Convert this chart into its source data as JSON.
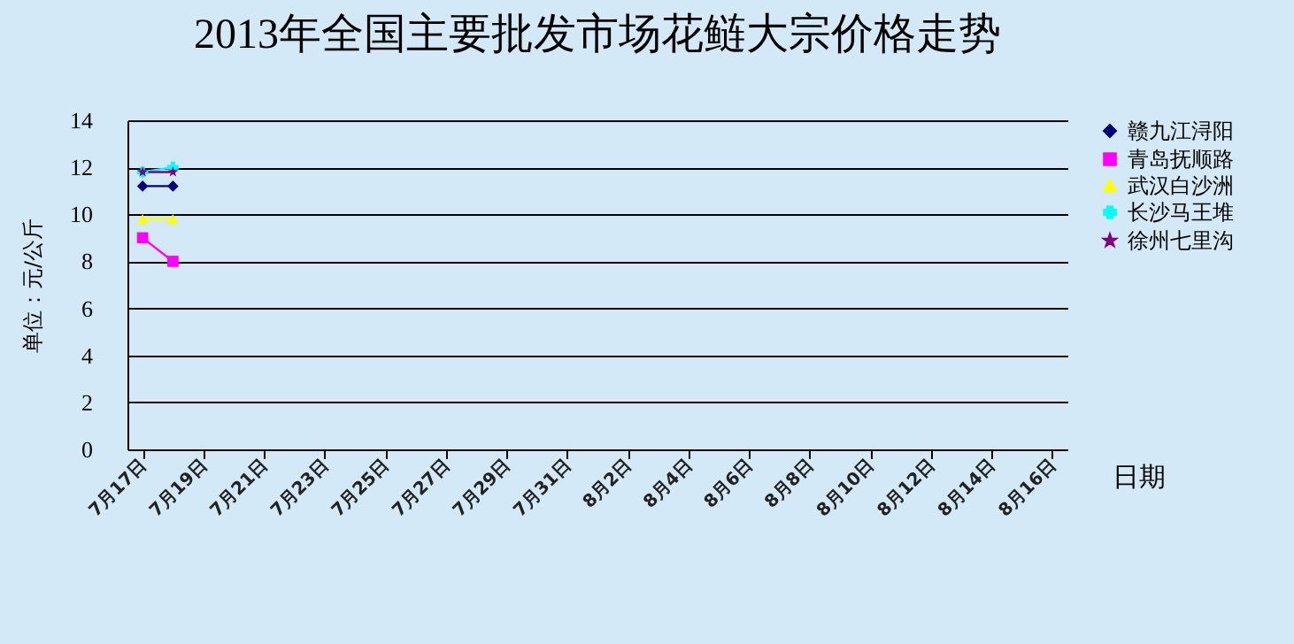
{
  "chart_data": {
    "type": "line",
    "title": "2013年全国主要批发市场花鲢大宗价格走势",
    "xlabel": "日期",
    "ylabel": "单位：元/公斤",
    "categories": [
      "7月17日",
      null,
      "7月19日",
      null,
      "7月21日",
      null,
      "7月23日",
      null,
      "7月25日",
      null,
      "7月27日",
      null,
      "7月29日",
      null,
      "7月31日",
      null,
      "8月2日",
      null,
      "8月4日",
      null,
      "8月6日",
      null,
      "8月8日",
      null,
      "8月10日",
      null,
      "8月12日",
      null,
      "8月14日",
      null,
      "8月16日"
    ],
    "series": [
      {
        "name": "赣九江浔阳",
        "color": "#000080",
        "marker": "diamond",
        "values": [
          11.2,
          11.2,
          null,
          null,
          null,
          null,
          null,
          null,
          null,
          null,
          null,
          null,
          null,
          null,
          null,
          null,
          null,
          null,
          null,
          null,
          null,
          null,
          null,
          null,
          null,
          null,
          null,
          null,
          null,
          null,
          null
        ]
      },
      {
        "name": "青岛抚顺路",
        "color": "#ff00ff",
        "marker": "square",
        "values": [
          9.0,
          8.0,
          null,
          null,
          null,
          null,
          null,
          null,
          null,
          null,
          null,
          null,
          null,
          null,
          null,
          null,
          null,
          null,
          null,
          null,
          null,
          null,
          null,
          null,
          null,
          null,
          null,
          null,
          null,
          null,
          null
        ]
      },
      {
        "name": "武汉白沙洲",
        "color": "#ffff00",
        "marker": "triangle",
        "values": [
          9.8,
          9.8,
          null,
          null,
          null,
          null,
          null,
          null,
          null,
          null,
          null,
          null,
          null,
          null,
          null,
          null,
          null,
          null,
          null,
          null,
          null,
          null,
          null,
          null,
          null,
          null,
          null,
          null,
          null,
          null,
          null
        ]
      },
      {
        "name": "长沙马王堆",
        "color": "#00ffff",
        "marker": "cross",
        "values": [
          11.8,
          12.0,
          null,
          null,
          null,
          null,
          null,
          null,
          null,
          null,
          null,
          null,
          null,
          null,
          null,
          null,
          null,
          null,
          null,
          null,
          null,
          null,
          null,
          null,
          null,
          null,
          null,
          null,
          null,
          null,
          null
        ]
      },
      {
        "name": "徐州七里沟",
        "color": "#800080",
        "marker": "star",
        "values": [
          11.8,
          11.8,
          null,
          null,
          null,
          null,
          null,
          null,
          null,
          null,
          null,
          null,
          null,
          null,
          null,
          null,
          null,
          null,
          null,
          null,
          null,
          null,
          null,
          null,
          null,
          null,
          null,
          null,
          null,
          null,
          null
        ]
      }
    ],
    "ylim": [
      0,
      14
    ],
    "yticks": [
      0,
      2,
      4,
      6,
      8,
      10,
      12,
      14
    ],
    "grid": "y",
    "legend": "right"
  }
}
